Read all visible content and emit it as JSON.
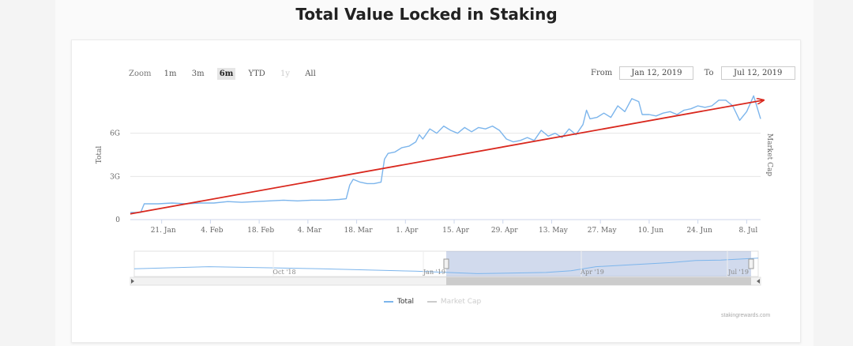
{
  "page": {
    "title": "Total Value Locked in Staking"
  },
  "toolbar": {
    "zoom_label": "Zoom",
    "zoom_buttons": [
      {
        "label": "1m",
        "state": "normal"
      },
      {
        "label": "3m",
        "state": "normal"
      },
      {
        "label": "6m",
        "state": "active"
      },
      {
        "label": "YTD",
        "state": "normal"
      },
      {
        "label": "1y",
        "state": "disabled"
      },
      {
        "label": "All",
        "state": "normal"
      }
    ],
    "from_label": "From",
    "from_value": "Jan 12, 2019",
    "to_label": "To",
    "to_value": "Jul 12, 2019"
  },
  "chart_data": {
    "type": "line",
    "title": "Total Value Locked in Staking",
    "ylabel_left": "Total",
    "ylabel_right": "Market Cap",
    "yticks": [
      {
        "value": 0,
        "label": "0"
      },
      {
        "value": 3,
        "label": "3G"
      },
      {
        "value": 6,
        "label": "6G"
      }
    ],
    "ylim": [
      0,
      9
    ],
    "xlim": [
      0,
      181
    ],
    "xticks": [
      {
        "day": 9,
        "label": "21. Jan"
      },
      {
        "day": 23,
        "label": "4. Feb"
      },
      {
        "day": 37,
        "label": "18. Feb"
      },
      {
        "day": 51,
        "label": "4. Mar"
      },
      {
        "day": 65,
        "label": "18. Mar"
      },
      {
        "day": 79,
        "label": "1. Apr"
      },
      {
        "day": 93,
        "label": "15. Apr"
      },
      {
        "day": 107,
        "label": "29. Apr"
      },
      {
        "day": 121,
        "label": "13. May"
      },
      {
        "day": 135,
        "label": "27. May"
      },
      {
        "day": 149,
        "label": "10. Jun"
      },
      {
        "day": 163,
        "label": "24. Jun"
      },
      {
        "day": 177,
        "label": "8. Jul"
      }
    ],
    "series": [
      {
        "name": "Total",
        "color": "#7cb5ec",
        "points": [
          [
            0,
            0.5
          ],
          [
            3,
            0.5
          ],
          [
            4,
            1.1
          ],
          [
            8,
            1.1
          ],
          [
            12,
            1.15
          ],
          [
            16,
            1.1
          ],
          [
            20,
            1.15
          ],
          [
            24,
            1.15
          ],
          [
            28,
            1.25
          ],
          [
            32,
            1.2
          ],
          [
            36,
            1.25
          ],
          [
            40,
            1.3
          ],
          [
            44,
            1.35
          ],
          [
            48,
            1.3
          ],
          [
            52,
            1.35
          ],
          [
            56,
            1.35
          ],
          [
            60,
            1.4
          ],
          [
            62,
            1.45
          ],
          [
            63,
            2.4
          ],
          [
            64,
            2.8
          ],
          [
            66,
            2.6
          ],
          [
            68,
            2.5
          ],
          [
            70,
            2.5
          ],
          [
            72,
            2.6
          ],
          [
            73,
            4.2
          ],
          [
            74,
            4.6
          ],
          [
            76,
            4.7
          ],
          [
            78,
            5.0
          ],
          [
            80,
            5.1
          ],
          [
            82,
            5.4
          ],
          [
            83,
            5.9
          ],
          [
            84,
            5.6
          ],
          [
            86,
            6.3
          ],
          [
            88,
            6.0
          ],
          [
            90,
            6.5
          ],
          [
            92,
            6.2
          ],
          [
            94,
            6.0
          ],
          [
            96,
            6.4
          ],
          [
            98,
            6.1
          ],
          [
            100,
            6.4
          ],
          [
            102,
            6.3
          ],
          [
            104,
            6.5
          ],
          [
            106,
            6.2
          ],
          [
            108,
            5.6
          ],
          [
            110,
            5.4
          ],
          [
            112,
            5.5
          ],
          [
            114,
            5.7
          ],
          [
            116,
            5.5
          ],
          [
            118,
            6.2
          ],
          [
            120,
            5.8
          ],
          [
            122,
            6.0
          ],
          [
            124,
            5.7
          ],
          [
            126,
            6.3
          ],
          [
            128,
            5.9
          ],
          [
            130,
            6.6
          ],
          [
            131,
            7.6
          ],
          [
            132,
            7.0
          ],
          [
            134,
            7.1
          ],
          [
            136,
            7.4
          ],
          [
            138,
            7.1
          ],
          [
            140,
            7.9
          ],
          [
            142,
            7.5
          ],
          [
            144,
            8.4
          ],
          [
            146,
            8.2
          ],
          [
            147,
            7.3
          ],
          [
            149,
            7.3
          ],
          [
            151,
            7.2
          ],
          [
            153,
            7.4
          ],
          [
            155,
            7.5
          ],
          [
            157,
            7.3
          ],
          [
            159,
            7.6
          ],
          [
            161,
            7.7
          ],
          [
            163,
            7.9
          ],
          [
            165,
            7.8
          ],
          [
            167,
            7.9
          ],
          [
            169,
            8.3
          ],
          [
            171,
            8.3
          ],
          [
            173,
            7.9
          ],
          [
            175,
            6.9
          ],
          [
            177,
            7.5
          ],
          [
            179,
            8.6
          ],
          [
            181,
            7.0
          ]
        ]
      },
      {
        "name": "Market Cap",
        "color": "#c6d8ea",
        "hidden": true,
        "points": []
      }
    ],
    "annotation": {
      "type": "arrow",
      "color": "#d9281e",
      "from": [
        0,
        0.4
      ],
      "to": [
        181,
        8.3
      ]
    },
    "navigator": {
      "labels": [
        "Oct '18",
        "Jan '19",
        "Apr '19",
        "Jul '19"
      ]
    },
    "legend": [
      "Total",
      "Market Cap"
    ],
    "credits": "stakingrewards.com"
  }
}
